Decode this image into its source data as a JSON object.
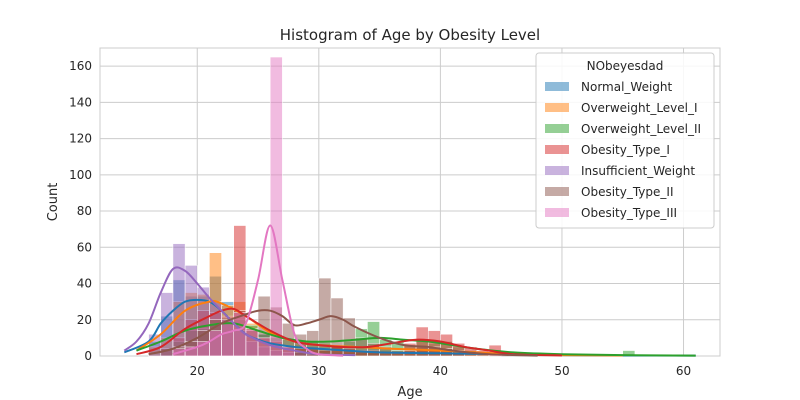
{
  "chart_data": {
    "type": "bar",
    "title": "Histogram of Age by Obesity Level",
    "xlabel": "Age",
    "ylabel": "Count",
    "xlim": [
      12,
      63
    ],
    "ylim": [
      0,
      170
    ],
    "xticks": [
      20,
      30,
      40,
      50,
      60
    ],
    "yticks": [
      0,
      20,
      40,
      60,
      80,
      100,
      120,
      140,
      160
    ],
    "grid": true,
    "legend": {
      "title": "NObeyesdad",
      "placement": "top-right"
    },
    "bin_width": 1.0,
    "series": [
      {
        "name": "Normal_Weight",
        "color": "#1f77b4",
        "bins": [
          [
            16,
            8
          ],
          [
            17,
            22
          ],
          [
            18,
            42
          ],
          [
            19,
            33
          ],
          [
            20,
            33
          ],
          [
            21,
            44
          ],
          [
            22,
            30
          ],
          [
            23,
            15
          ],
          [
            24,
            10
          ],
          [
            25,
            12
          ],
          [
            26,
            5
          ],
          [
            27,
            5
          ],
          [
            28,
            3
          ],
          [
            29,
            3
          ],
          [
            30,
            3
          ],
          [
            31,
            2
          ],
          [
            32,
            2
          ],
          [
            33,
            2
          ],
          [
            34,
            2
          ],
          [
            35,
            1
          ],
          [
            36,
            1
          ],
          [
            38,
            1
          ],
          [
            40,
            1
          ],
          [
            41,
            1
          ]
        ],
        "kde": [
          [
            14,
            2
          ],
          [
            16,
            8
          ],
          [
            17,
            18
          ],
          [
            18,
            25
          ],
          [
            19,
            30
          ],
          [
            20,
            31
          ],
          [
            21,
            30
          ],
          [
            22,
            25
          ],
          [
            23,
            18
          ],
          [
            24,
            12
          ],
          [
            25,
            9
          ],
          [
            26,
            7
          ],
          [
            28,
            5
          ],
          [
            30,
            4
          ],
          [
            35,
            2
          ],
          [
            40,
            1.5
          ],
          [
            45,
            1
          ],
          [
            50,
            0.5
          ],
          [
            55,
            0.3
          ],
          [
            61,
            0.2
          ]
        ]
      },
      {
        "name": "Overweight_Level_I",
        "color": "#ff7f0e",
        "bins": [
          [
            16,
            5
          ],
          [
            17,
            10
          ],
          [
            18,
            30
          ],
          [
            19,
            35
          ],
          [
            20,
            34
          ],
          [
            21,
            57
          ],
          [
            22,
            28
          ],
          [
            23,
            30
          ],
          [
            24,
            18
          ],
          [
            25,
            10
          ],
          [
            26,
            8
          ],
          [
            27,
            5
          ],
          [
            28,
            6
          ],
          [
            29,
            5
          ],
          [
            30,
            4
          ],
          [
            31,
            6
          ],
          [
            32,
            3
          ],
          [
            33,
            3
          ],
          [
            34,
            3
          ],
          [
            35,
            3
          ],
          [
            36,
            2
          ],
          [
            37,
            2
          ],
          [
            38,
            3
          ],
          [
            39,
            3
          ],
          [
            40,
            4
          ],
          [
            41,
            3
          ],
          [
            42,
            2
          ]
        ],
        "kde": [
          [
            15,
            3
          ],
          [
            17,
            12
          ],
          [
            19,
            25
          ],
          [
            21,
            30
          ],
          [
            22,
            29
          ],
          [
            24,
            22
          ],
          [
            26,
            13
          ],
          [
            28,
            8
          ],
          [
            30,
            6
          ],
          [
            33,
            5
          ],
          [
            36,
            4
          ],
          [
            40,
            3
          ],
          [
            43,
            2
          ],
          [
            46,
            1
          ],
          [
            50,
            0.5
          ],
          [
            55,
            0.3
          ]
        ]
      },
      {
        "name": "Overweight_Level_II",
        "color": "#2ca02c",
        "bins": [
          [
            17,
            4
          ],
          [
            18,
            8
          ],
          [
            19,
            14
          ],
          [
            20,
            15
          ],
          [
            21,
            18
          ],
          [
            22,
            20
          ],
          [
            23,
            20
          ],
          [
            24,
            17
          ],
          [
            25,
            12
          ],
          [
            26,
            10
          ],
          [
            27,
            9
          ],
          [
            28,
            8
          ],
          [
            29,
            8
          ],
          [
            30,
            7
          ],
          [
            31,
            6
          ],
          [
            32,
            8
          ],
          [
            33,
            15
          ],
          [
            34,
            19
          ],
          [
            35,
            9
          ],
          [
            36,
            8
          ],
          [
            37,
            6
          ],
          [
            38,
            9
          ],
          [
            39,
            7
          ],
          [
            40,
            8
          ],
          [
            41,
            5
          ],
          [
            42,
            3
          ],
          [
            43,
            2
          ],
          [
            55,
            3
          ]
        ],
        "kde": [
          [
            15,
            3
          ],
          [
            17,
            8
          ],
          [
            19,
            14
          ],
          [
            21,
            17
          ],
          [
            23,
            18
          ],
          [
            25,
            14
          ],
          [
            27,
            10
          ],
          [
            29,
            8
          ],
          [
            31,
            8
          ],
          [
            33,
            9
          ],
          [
            35,
            10
          ],
          [
            37,
            9
          ],
          [
            39,
            8
          ],
          [
            41,
            6
          ],
          [
            43,
            4
          ],
          [
            46,
            2
          ],
          [
            50,
            1
          ],
          [
            55,
            0.5
          ],
          [
            61,
            0.2
          ]
        ]
      },
      {
        "name": "Obesity_Type_I",
        "color": "#d62728",
        "bins": [
          [
            17,
            4
          ],
          [
            18,
            10
          ],
          [
            19,
            20
          ],
          [
            20,
            25
          ],
          [
            21,
            24
          ],
          [
            22,
            22
          ],
          [
            23,
            72
          ],
          [
            24,
            15
          ],
          [
            25,
            10
          ],
          [
            26,
            8
          ],
          [
            27,
            5
          ],
          [
            28,
            4
          ],
          [
            29,
            4
          ],
          [
            30,
            3
          ],
          [
            31,
            5
          ],
          [
            32,
            4
          ],
          [
            33,
            3
          ],
          [
            34,
            3
          ],
          [
            35,
            2
          ],
          [
            36,
            2
          ],
          [
            37,
            7
          ],
          [
            38,
            16
          ],
          [
            39,
            14
          ],
          [
            40,
            12
          ],
          [
            41,
            7
          ],
          [
            42,
            5
          ],
          [
            43,
            3
          ],
          [
            44,
            6
          ]
        ],
        "kde": [
          [
            15,
            1
          ],
          [
            17,
            5
          ],
          [
            19,
            15
          ],
          [
            21,
            22
          ],
          [
            22,
            25
          ],
          [
            23,
            26
          ],
          [
            24,
            22
          ],
          [
            26,
            14
          ],
          [
            28,
            8
          ],
          [
            30,
            6
          ],
          [
            32,
            5
          ],
          [
            34,
            5
          ],
          [
            36,
            7
          ],
          [
            38,
            9
          ],
          [
            40,
            8
          ],
          [
            42,
            5
          ],
          [
            44,
            3
          ],
          [
            46,
            1
          ],
          [
            50,
            0.3
          ]
        ]
      },
      {
        "name": "Insufficient_Weight",
        "color": "#9467bd",
        "bins": [
          [
            16,
            12
          ],
          [
            17,
            35
          ],
          [
            18,
            62
          ],
          [
            19,
            50
          ],
          [
            20,
            38
          ],
          [
            21,
            30
          ],
          [
            22,
            20
          ],
          [
            23,
            14
          ],
          [
            24,
            8
          ],
          [
            25,
            5
          ],
          [
            26,
            3
          ],
          [
            27,
            2
          ],
          [
            28,
            2
          ],
          [
            29,
            1
          ],
          [
            30,
            1
          ]
        ],
        "kde": [
          [
            14,
            3
          ],
          [
            15,
            8
          ],
          [
            16,
            18
          ],
          [
            17,
            35
          ],
          [
            18,
            48
          ],
          [
            19,
            47
          ],
          [
            20,
            40
          ],
          [
            21,
            32
          ],
          [
            22,
            25
          ],
          [
            23,
            18
          ],
          [
            24,
            12
          ],
          [
            26,
            6
          ],
          [
            28,
            3
          ],
          [
            30,
            1
          ],
          [
            33,
            0.5
          ]
        ]
      },
      {
        "name": "Obesity_Type_II",
        "color": "#8c564b",
        "bins": [
          [
            18,
            5
          ],
          [
            19,
            8
          ],
          [
            20,
            14
          ],
          [
            21,
            20
          ],
          [
            22,
            21
          ],
          [
            23,
            25
          ],
          [
            24,
            14
          ],
          [
            25,
            33
          ],
          [
            26,
            27
          ],
          [
            27,
            18
          ],
          [
            28,
            12
          ],
          [
            29,
            14
          ],
          [
            30,
            43
          ],
          [
            31,
            32
          ],
          [
            32,
            21
          ],
          [
            33,
            10
          ],
          [
            34,
            7
          ],
          [
            35,
            5
          ],
          [
            36,
            3
          ],
          [
            37,
            3
          ],
          [
            38,
            5
          ],
          [
            39,
            5
          ],
          [
            40,
            4
          ],
          [
            41,
            3
          ]
        ],
        "kde": [
          [
            16,
            1
          ],
          [
            18,
            4
          ],
          [
            20,
            10
          ],
          [
            22,
            18
          ],
          [
            24,
            23
          ],
          [
            25,
            25
          ],
          [
            26,
            25
          ],
          [
            27,
            22
          ],
          [
            28,
            17
          ],
          [
            29,
            18
          ],
          [
            30,
            20
          ],
          [
            31,
            22
          ],
          [
            32,
            20
          ],
          [
            33,
            16
          ],
          [
            35,
            10
          ],
          [
            37,
            6
          ],
          [
            39,
            5
          ],
          [
            41,
            3
          ],
          [
            44,
            1
          ],
          [
            48,
            0.2
          ]
        ]
      },
      {
        "name": "Obesity_Type_III",
        "color": "#e377c2",
        "bins": [
          [
            18,
            4
          ],
          [
            19,
            5
          ],
          [
            20,
            8
          ],
          [
            21,
            14
          ],
          [
            22,
            20
          ],
          [
            23,
            24
          ],
          [
            24,
            15
          ],
          [
            25,
            10
          ],
          [
            26,
            165
          ],
          [
            27,
            5
          ]
        ],
        "kde": [
          [
            18,
            1
          ],
          [
            20,
            5
          ],
          [
            21,
            8
          ],
          [
            22,
            12
          ],
          [
            23,
            14
          ],
          [
            24,
            18
          ],
          [
            25,
            42
          ],
          [
            26,
            72
          ],
          [
            27,
            42
          ],
          [
            28,
            12
          ],
          [
            29,
            4
          ],
          [
            30,
            1
          ],
          [
            32,
            0.2
          ]
        ]
      }
    ]
  }
}
